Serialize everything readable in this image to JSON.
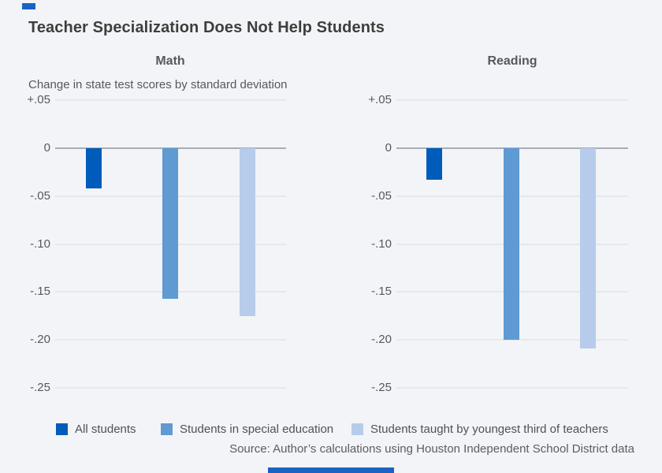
{
  "title": "Teacher Specialization Does Not Help Students",
  "axis_note": "Change in state test scores by standard deviation",
  "source": "Source: Author’s calculations using Houston Independent School District data",
  "colors": {
    "background": "#F3F4F7",
    "accent_brand": "#1B62C4",
    "all_students": "#005CBA",
    "special_education": "#5F9AD3",
    "youngest_third": "#B6CCEA",
    "gridline": "#E5E8EC",
    "zero_line": "#A9ADB2",
    "title_text": "#3E3E3E",
    "label_text": "#56585B"
  },
  "legend": [
    {
      "label": "All students",
      "color": "#005CBA"
    },
    {
      "label": "Students in special education",
      "color": "#5F9AD3"
    },
    {
      "label": "Students taught by youngest third of teachers",
      "color": "#B6CCEA"
    }
  ],
  "chart_data": {
    "type": "bar",
    "title": "Teacher Specialization Does Not Help Students",
    "ylabel": "Change in state test scores by standard deviation",
    "xlabel": "",
    "yticks": [
      "+.05",
      "0",
      "-.05",
      "-.10",
      "-.15",
      "-.20",
      "-.25"
    ],
    "ytick_values": [
      0.05,
      0,
      -0.05,
      -0.1,
      -0.15,
      -0.2,
      -0.25
    ],
    "ylim": [
      -0.27,
      0.07
    ],
    "grid": true,
    "legend_position": "bottom",
    "series_names": [
      "All students",
      "Students in special education",
      "Students taught by youngest third of teachers"
    ],
    "panels": [
      {
        "label": "Math",
        "values": [
          -0.042,
          -0.157,
          -0.175
        ]
      },
      {
        "label": "Reading",
        "values": [
          -0.033,
          -0.2,
          -0.209
        ]
      }
    ]
  }
}
